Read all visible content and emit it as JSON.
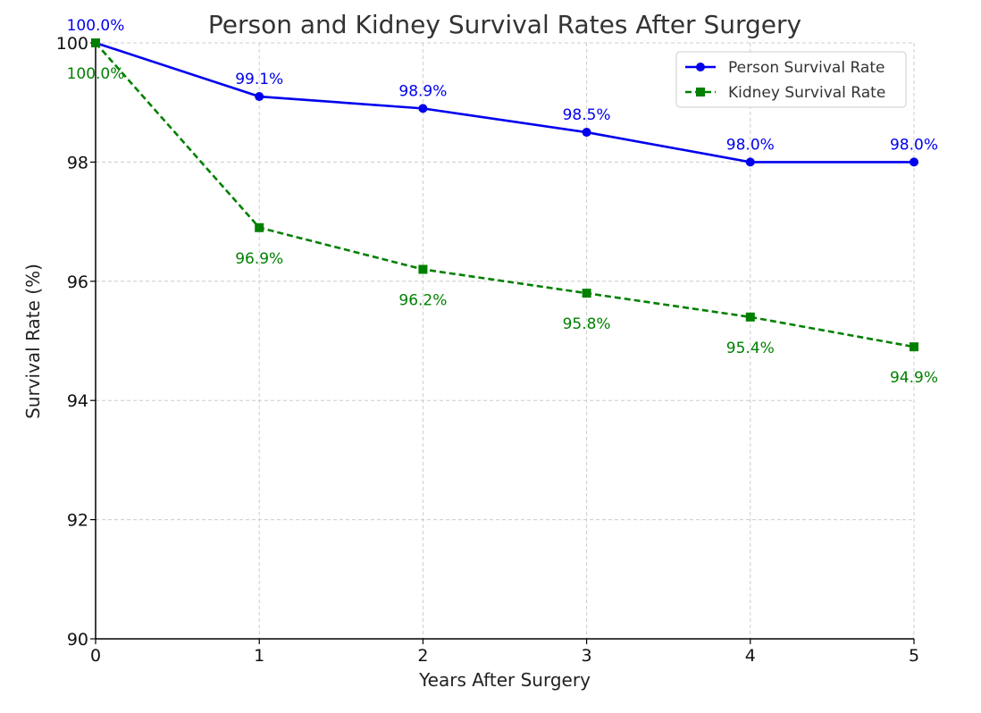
{
  "chart_data": {
    "type": "line",
    "title": "Person and Kidney Survival Rates After Surgery",
    "xlabel": "Years After Surgery",
    "ylabel": "Survival Rate (%)",
    "x": [
      0,
      1,
      2,
      3,
      4,
      5
    ],
    "xlim": [
      0,
      5
    ],
    "ylim": [
      90,
      100
    ],
    "x_ticks": [
      "0",
      "1",
      "2",
      "3",
      "4",
      "5"
    ],
    "y_ticks": [
      "90",
      "92",
      "94",
      "96",
      "98",
      "100"
    ],
    "grid": true,
    "legend_position": "top-right",
    "series": [
      {
        "name": "Person Survival Rate",
        "values": [
          100.0,
          99.1,
          98.9,
          98.5,
          98.0,
          98.0
        ],
        "labels": [
          "100.0%",
          "99.1%",
          "98.9%",
          "98.5%",
          "98.0%",
          "98.0%"
        ],
        "color": "#0000ee",
        "marker": "circle",
        "line_style": "solid"
      },
      {
        "name": "Kidney Survival Rate",
        "values": [
          100.0,
          96.9,
          96.2,
          95.8,
          95.4,
          94.9
        ],
        "labels": [
          "100.0%",
          "96.9%",
          "96.2%",
          "95.8%",
          "95.4%",
          "94.9%"
        ],
        "color": "#008000",
        "marker": "square",
        "line_style": "dashed"
      }
    ]
  }
}
